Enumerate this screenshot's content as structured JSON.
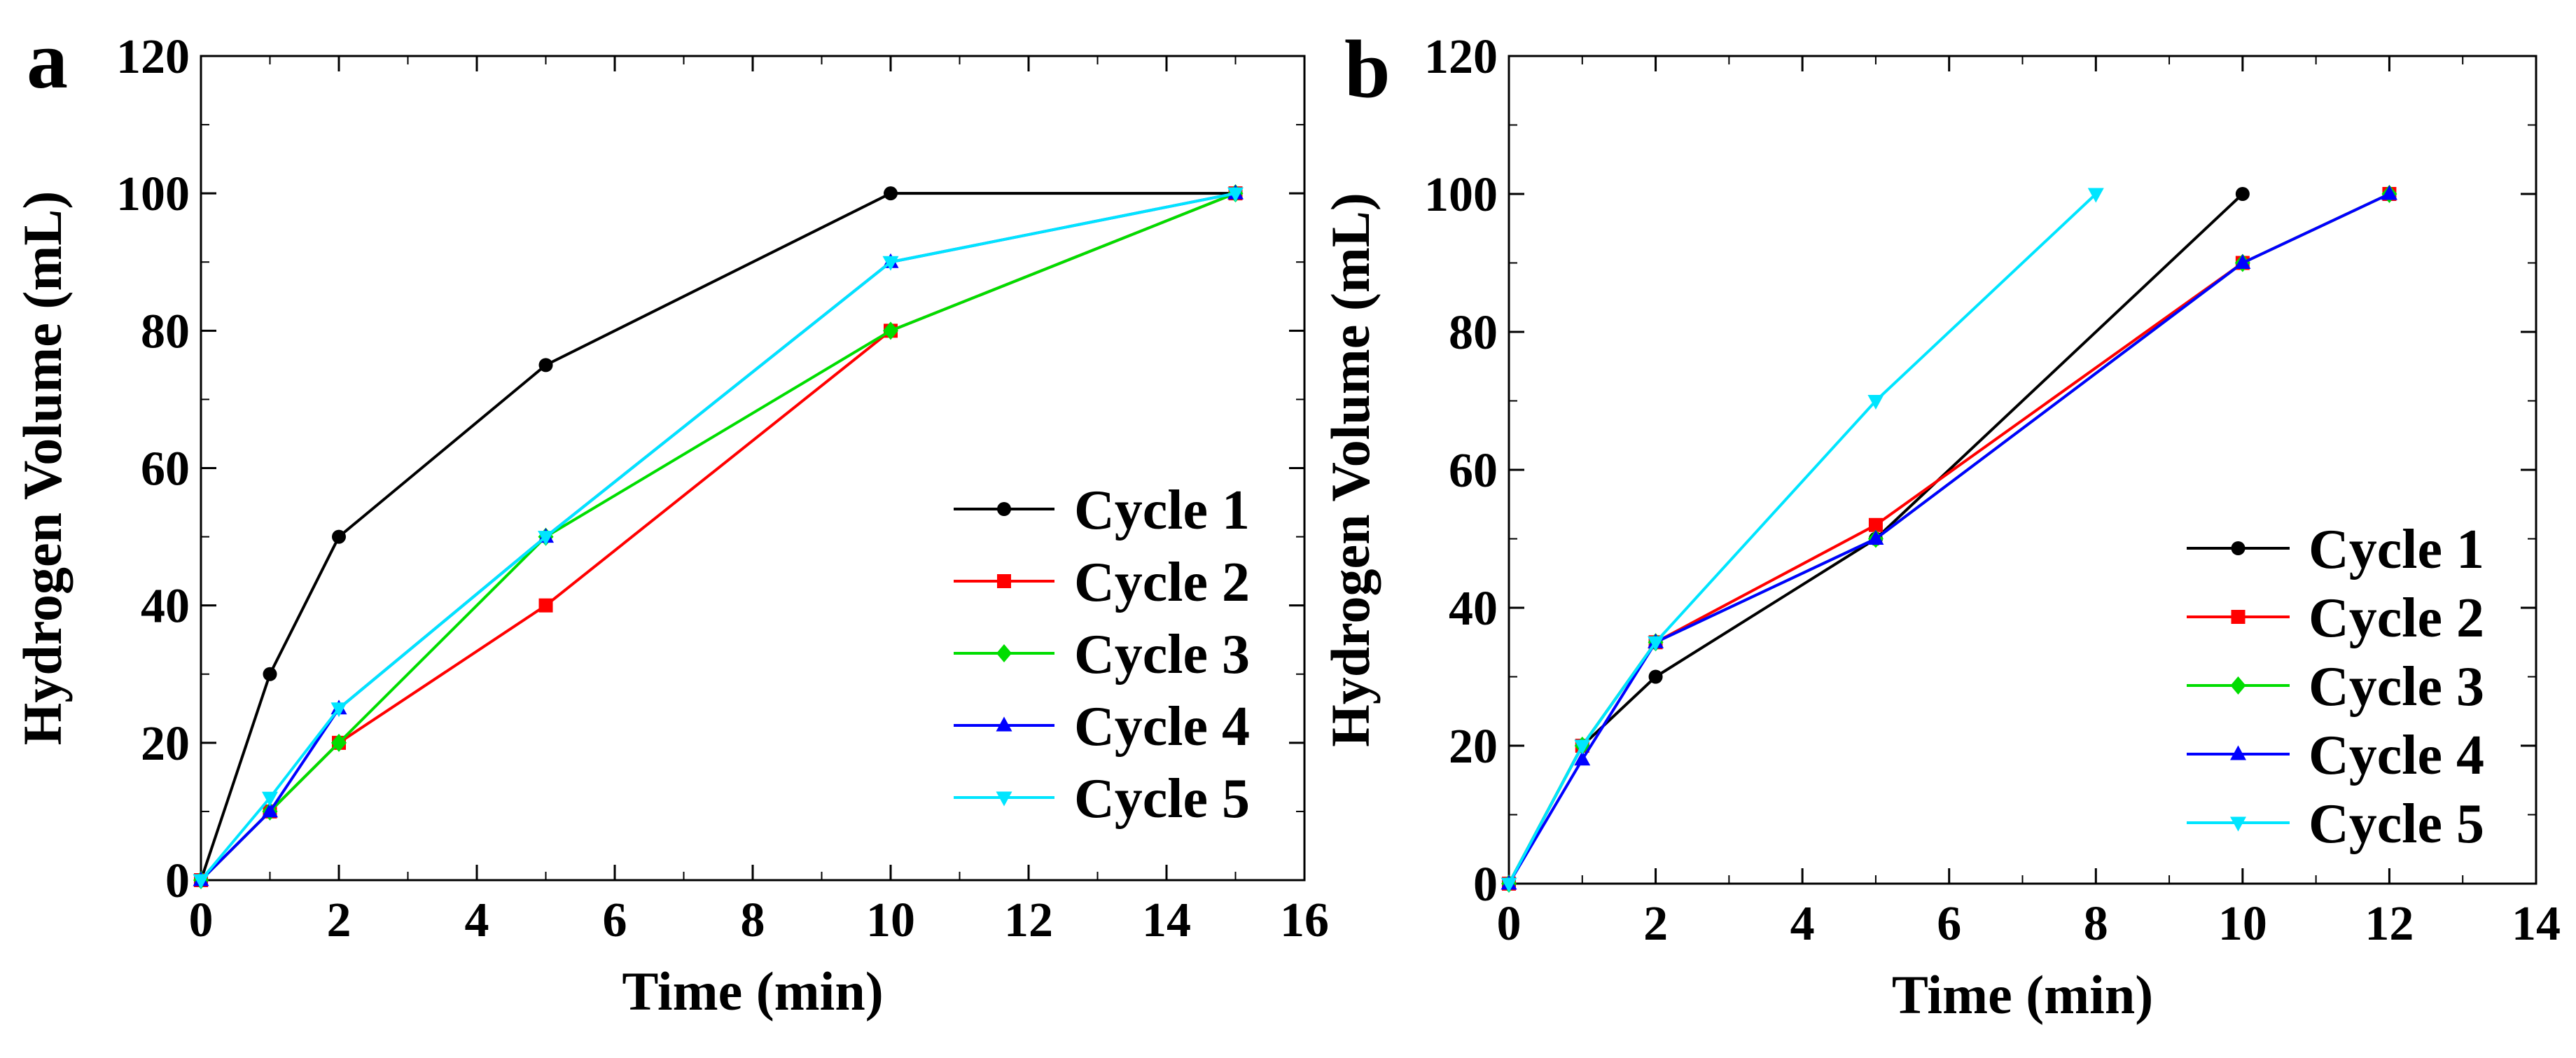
{
  "chart_data": [
    {
      "type": "line",
      "panel_label": "a",
      "xlabel": "Time (min)",
      "ylabel": "Hydrogen Volume (mL)",
      "xlim": [
        0,
        16
      ],
      "ylim": [
        0,
        120
      ],
      "xticks": [
        0,
        2,
        4,
        6,
        8,
        10,
        12,
        14,
        16
      ],
      "yticks": [
        0,
        20,
        40,
        60,
        80,
        100,
        120
      ],
      "grid": false,
      "legend_position": "center-right",
      "series": [
        {
          "name": "Cycle 1",
          "color": "#000000",
          "marker": "circle",
          "x": [
            0,
            1,
            2,
            5,
            10,
            15
          ],
          "y": [
            0,
            30,
            50,
            75,
            100,
            100
          ]
        },
        {
          "name": "Cycle 2",
          "color": "#ff0000",
          "marker": "square",
          "x": [
            0,
            1,
            2,
            5,
            10,
            15
          ],
          "y": [
            0,
            10,
            20,
            40,
            80,
            100
          ]
        },
        {
          "name": "Cycle 3",
          "color": "#00dd00",
          "marker": "diamond",
          "x": [
            0,
            1,
            2,
            5,
            10,
            15
          ],
          "y": [
            0,
            10,
            20,
            50,
            80,
            100
          ]
        },
        {
          "name": "Cycle 4",
          "color": "#0000ff",
          "marker": "triangle-up",
          "x": [
            0,
            1,
            2,
            5,
            10,
            15
          ],
          "y": [
            0,
            10,
            25,
            50,
            90,
            100
          ]
        },
        {
          "name": "Cycle 5",
          "color": "#00e5ff",
          "marker": "triangle-down",
          "x": [
            0,
            1,
            2,
            5,
            10,
            15
          ],
          "y": [
            0,
            12,
            25,
            50,
            90,
            100
          ]
        }
      ]
    },
    {
      "type": "line",
      "panel_label": "b",
      "xlabel": "Time (min)",
      "ylabel": "Hydrogen Volume (mL)",
      "xlim": [
        0,
        14
      ],
      "ylim": [
        0,
        120
      ],
      "xticks": [
        0,
        2,
        4,
        6,
        8,
        10,
        12,
        14
      ],
      "yticks": [
        0,
        20,
        40,
        60,
        80,
        100,
        120
      ],
      "grid": false,
      "legend_position": "lower-right",
      "series": [
        {
          "name": "Cycle 1",
          "color": "#000000",
          "marker": "circle",
          "x": [
            0,
            1,
            2,
            5,
            10
          ],
          "y": [
            0,
            20,
            30,
            50,
            100
          ]
        },
        {
          "name": "Cycle 2",
          "color": "#ff0000",
          "marker": "square",
          "x": [
            0,
            1,
            2,
            5,
            10,
            12
          ],
          "y": [
            0,
            20,
            35,
            52,
            90,
            100
          ]
        },
        {
          "name": "Cycle 3",
          "color": "#00dd00",
          "marker": "diamond",
          "x": [
            0,
            1,
            2,
            5,
            10,
            12
          ],
          "y": [
            0,
            20,
            35,
            50,
            90,
            100
          ]
        },
        {
          "name": "Cycle 4",
          "color": "#0000ff",
          "marker": "triangle-up",
          "x": [
            0,
            1,
            2,
            5,
            10,
            12
          ],
          "y": [
            0,
            18,
            35,
            50,
            90,
            100
          ]
        },
        {
          "name": "Cycle 5",
          "color": "#00e5ff",
          "marker": "triangle-down",
          "x": [
            0,
            1,
            2,
            5,
            8
          ],
          "y": [
            0,
            20,
            35,
            70,
            100
          ]
        }
      ]
    }
  ]
}
